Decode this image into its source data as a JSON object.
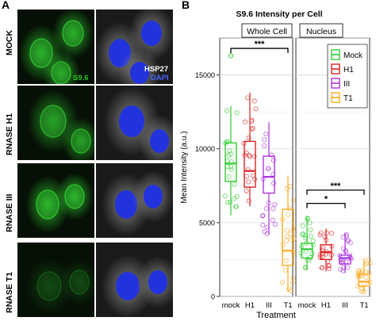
{
  "panel_a": {
    "letter": "A",
    "rows": [
      "MOCK",
      "RNASE H1",
      "RNASE III",
      "RNASE T1"
    ],
    "channel_labels": {
      "green": "S9.6",
      "gray_top": "HSP27",
      "gray_bottom": "DAPI"
    },
    "colors": {
      "green": "#2fc12f",
      "gray": "#8c8c8c",
      "blue": "#2233dd"
    },
    "green_level": [
      0.85,
      0.75,
      0.9,
      0.25
    ]
  },
  "panel_b": {
    "letter": "B",
    "chart_data": {
      "type": "box",
      "title": "S9.6 Intensity per Cell",
      "xlabel": "Treatment",
      "ylabel": "Mean Intensity (a.u.)",
      "ylim": [
        0,
        17500
      ],
      "yticks": [
        0,
        5000,
        10000,
        15000
      ],
      "facets": [
        "Whole Cell",
        "Nucleus"
      ],
      "categories": [
        "mock",
        "H1",
        "III",
        "T1"
      ],
      "legend": {
        "position": "top-right",
        "entries": [
          "Mock",
          "H1",
          "III",
          "T1"
        ]
      },
      "colors": [
        "#33cc33",
        "#dd2222",
        "#aa33dd",
        "#ffaa22"
      ],
      "series": [
        {
          "facet": "Whole Cell",
          "boxes": [
            {
              "category": "mock",
              "q1": 7800,
              "median": 9000,
              "q3": 10400,
              "low": 5500,
              "high": 12900
            },
            {
              "category": "H1",
              "q1": 7400,
              "median": 8500,
              "q3": 10500,
              "low": 6100,
              "high": 13800
            },
            {
              "category": "III",
              "q1": 7000,
              "median": 8100,
              "q3": 9500,
              "low": 4200,
              "high": 11800
            },
            {
              "category": "T1",
              "q1": 2100,
              "median": 3100,
              "q3": 5900,
              "low": 300,
              "high": 8200
            }
          ],
          "outliers": [
            {
              "category": "mock",
              "value": 16300
            }
          ]
        },
        {
          "facet": "Nucleus",
          "boxes": [
            {
              "category": "mock",
              "q1": 2600,
              "median": 3200,
              "q3": 3600,
              "low": 1800,
              "high": 5400
            },
            {
              "category": "H1",
              "q1": 2500,
              "median": 3000,
              "q3": 3500,
              "low": 1700,
              "high": 4600
            },
            {
              "category": "III",
              "q1": 2200,
              "median": 2600,
              "q3": 2800,
              "low": 1600,
              "high": 4300
            },
            {
              "category": "T1",
              "q1": 700,
              "median": 1000,
              "q3": 1500,
              "low": 300,
              "high": 2600
            }
          ]
        }
      ],
      "annotations": [
        {
          "facet": "Whole Cell",
          "from": "mock",
          "to": "T1",
          "label": "***",
          "y": 16800
        },
        {
          "facet": "Nucleus",
          "from": "mock",
          "to": "T1",
          "label": "***",
          "y": 7200
        },
        {
          "facet": "Nucleus",
          "from": "mock",
          "to": "III",
          "label": "*",
          "y": 6300
        }
      ]
    }
  }
}
